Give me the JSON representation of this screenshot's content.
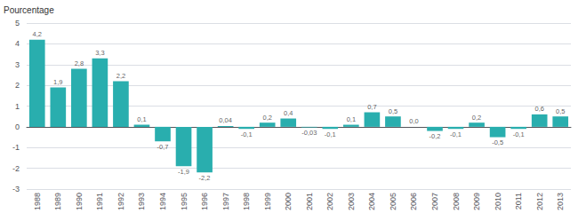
{
  "chart_data": {
    "type": "bar",
    "ylabel": "Pourcentage",
    "categories": [
      "1988",
      "1989",
      "1990",
      "1991",
      "1992",
      "1993",
      "1994",
      "1995",
      "1996",
      "1997",
      "1998",
      "1999",
      "2000",
      "2001",
      "2002",
      "2003",
      "2004",
      "2005",
      "2006",
      "2007",
      "2008",
      "2009",
      "2010",
      "2011",
      "2012",
      "2013"
    ],
    "values": [
      4.2,
      1.9,
      2.8,
      3.3,
      2.2,
      0.1,
      -0.7,
      -1.9,
      -2.2,
      0.04,
      -0.1,
      0.2,
      0.4,
      -0.03,
      -0.1,
      0.1,
      0.7,
      0.5,
      0.0,
      -0.2,
      -0.1,
      0.2,
      -0.5,
      -0.1,
      0.6,
      0.5
    ],
    "value_labels": [
      "4,2",
      "1,9",
      "2,8",
      "3,3",
      "2,2",
      "0,1",
      "-0,7",
      "-1,9",
      "-2,2",
      "0,04",
      "-0,1",
      "0,2",
      "0,4",
      "-0,03",
      "-0,1",
      "0,1",
      "0,7",
      "0,5",
      "0,0",
      "-0,2",
      "-0,1",
      "0,2",
      "-0,5",
      "-0,1",
      "0,6",
      "0,5"
    ],
    "data_labels": true,
    "color": "#29aeae",
    "ylim": [
      -3,
      5
    ],
    "yticks": [
      -3,
      -2,
      -1,
      0,
      1,
      2,
      3,
      4,
      5
    ],
    "grid": true
  }
}
